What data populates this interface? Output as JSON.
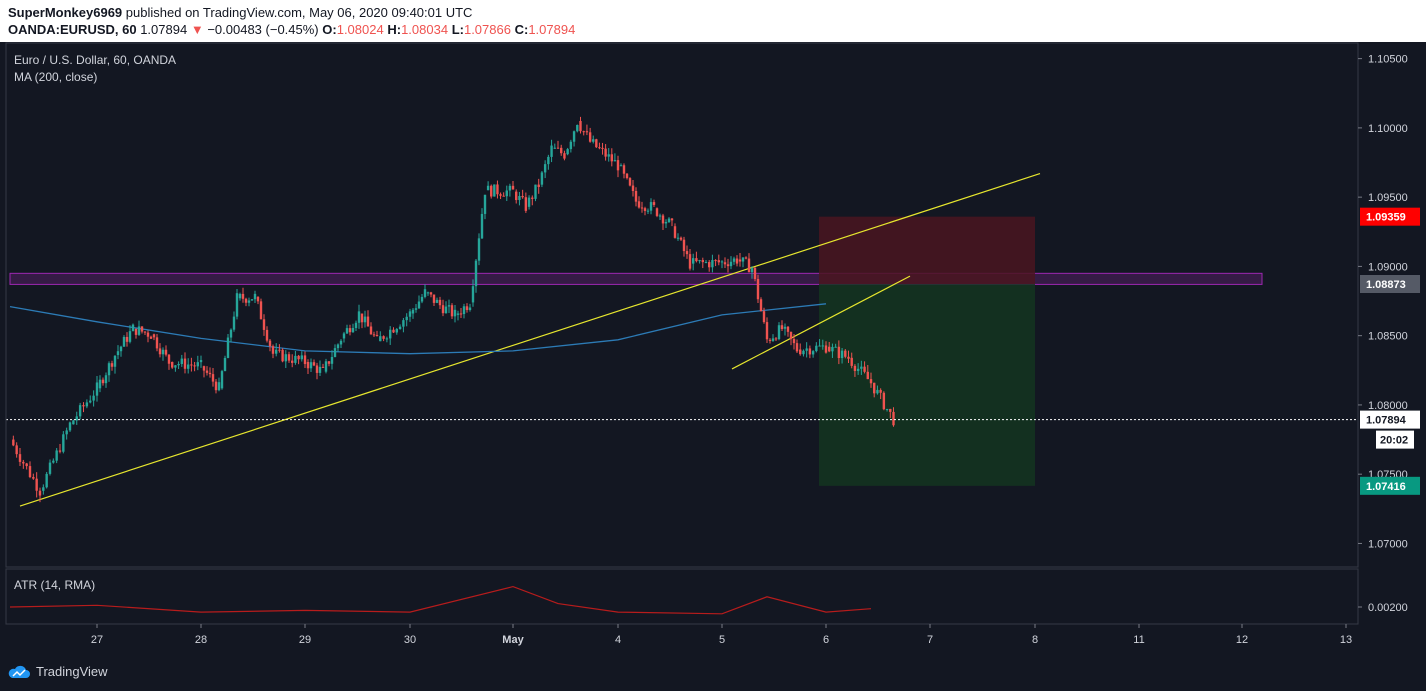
{
  "header": {
    "author": "SuperMonkey6969",
    "published_text": "published on TradingView.com, May 06, 2020 09:40:01 UTC",
    "symbol_line": "OANDA:EURUSD, 60",
    "last": "1.07894",
    "change": "−0.00483 (−0.45%)",
    "o_label": "O:",
    "o": "1.08024",
    "h_label": "H:",
    "h": "1.08034",
    "l_label": "L:",
    "l": "1.07866",
    "c_label": "C:",
    "c": "1.07894"
  },
  "legend": {
    "instrument": "Euro / U.S. Dollar, 60, OANDA",
    "ma": "MA (200, close)",
    "atr": "ATR (14, RMA)"
  },
  "footer": {
    "brand": "TradingView"
  },
  "colors": {
    "background": "#131722",
    "up": "#26a69a",
    "down": "#ef5350",
    "ma": "#2c7bb6",
    "atr": "#b71c1c",
    "trendline": "#e6e62e",
    "zone": "#9c27b0",
    "stop_zone": "#4a1520",
    "target_zone": "#143520",
    "stop_tag": "#ff0000",
    "target_tag": "#089981",
    "entry_tag": "#555a66"
  },
  "chart_data": {
    "type": "candlestick",
    "title": "Euro / U.S. Dollar, 60, OANDA",
    "x_tick_labels": [
      "27",
      "28",
      "29",
      "30",
      "May",
      "4",
      "5",
      "6",
      "7",
      "8",
      "11",
      "12",
      "13"
    ],
    "y_tick_labels": [
      "1.10500",
      "1.10000",
      "1.09500",
      "1.09000",
      "1.08500",
      "1.08000",
      "1.07500",
      "1.07000"
    ],
    "ylim": [
      1.0683,
      1.1062
    ],
    "atr_tick_label": "0.00200",
    "price_tags": {
      "stop": "1.09359",
      "entry": "1.08873",
      "last": "1.07894",
      "countdown": "20:02",
      "target": "1.07416"
    },
    "zone": {
      "low": 1.0887,
      "high": 1.0895,
      "from": "Apr 26",
      "to": "May 12"
    },
    "position": {
      "from": "May 6",
      "to": "May 8",
      "entry": 1.08873,
      "stop": 1.09359,
      "target": 1.07416
    },
    "trendlines": [
      {
        "from": [
          "Apr 26",
          1.0727
        ],
        "to": [
          "May 7",
          1.0967
        ]
      },
      {
        "from": [
          "May 5",
          1.0826
        ],
        "to": [
          "May 7",
          1.0893
        ]
      }
    ],
    "price_path": [
      [
        "Apr 26",
        1.0775
      ],
      [
        "Apr 26",
        1.0738
      ],
      [
        "Apr 26",
        1.0786
      ],
      [
        "Apr 27",
        1.0812
      ],
      [
        "Apr 27",
        1.0836
      ],
      [
        "Apr 27",
        1.0855
      ],
      [
        "Apr 27",
        1.0851
      ],
      [
        "Apr 27",
        1.0831
      ],
      [
        "Apr 28",
        1.0828
      ],
      [
        "Apr 28",
        1.0812
      ],
      [
        "Apr 28",
        1.0877
      ],
      [
        "Apr 28",
        1.0878
      ],
      [
        "Apr 28",
        1.0837
      ],
      [
        "Apr 29",
        1.0831
      ],
      [
        "Apr 29",
        1.0824
      ],
      [
        "Apr 29",
        1.0848
      ],
      [
        "Apr 29",
        1.0866
      ],
      [
        "Apr 29",
        1.0846
      ],
      [
        "Apr 30",
        1.0866
      ],
      [
        "Apr 30",
        1.0881
      ],
      [
        "Apr 30",
        1.0872
      ],
      [
        "Apr 30",
        1.0865
      ],
      [
        "Apr 30",
        1.0874
      ],
      [
        "Apr 30",
        1.0955
      ],
      [
        "May 1",
        1.0954
      ],
      [
        "May 1",
        1.0943
      ],
      [
        "May 1",
        1.0959
      ],
      [
        "May 1",
        1.0985
      ],
      [
        "May 1",
        1.0981
      ],
      [
        "May 1",
        1.1005
      ],
      [
        "May 1",
        1.099
      ],
      [
        "May 4",
        1.0973
      ],
      [
        "May 4",
        1.0947
      ],
      [
        "May 4",
        1.0942
      ],
      [
        "May 4",
        1.0929
      ],
      [
        "May 4",
        1.0902
      ],
      [
        "May 5",
        1.0903
      ],
      [
        "May 5",
        1.0905
      ],
      [
        "May 5",
        1.0899
      ],
      [
        "May 5",
        1.0847
      ],
      [
        "May 5",
        1.0855
      ],
      [
        "May 5",
        1.084
      ],
      [
        "May 6",
        1.0842
      ],
      [
        "May 6",
        1.0834
      ],
      [
        "May 6",
        1.0816
      ],
      [
        "May 6",
        1.07894
      ]
    ],
    "ma_path": [
      [
        "Apr 26",
        1.0871
      ],
      [
        "Apr 27",
        1.086
      ],
      [
        "Apr 28",
        1.0848
      ],
      [
        "Apr 29",
        1.0839
      ],
      [
        "Apr 30",
        1.0837
      ],
      [
        "May 1",
        1.0839
      ],
      [
        "May 4",
        1.0847
      ],
      [
        "May 5",
        1.0865
      ],
      [
        "May 6",
        1.0873
      ]
    ],
    "atr_path": [
      [
        "Apr 26",
        0.002
      ],
      [
        "Apr 27",
        0.0021
      ],
      [
        "Apr 28",
        0.0017
      ],
      [
        "Apr 29",
        0.0018
      ],
      [
        "Apr 30",
        0.0017
      ],
      [
        "May 1",
        0.0032
      ],
      [
        "May 1",
        0.0022
      ],
      [
        "May 4",
        0.0017
      ],
      [
        "May 5",
        0.0016
      ],
      [
        "May 5",
        0.0026
      ],
      [
        "May 6",
        0.0017
      ],
      [
        "May 6",
        0.0019
      ]
    ]
  }
}
